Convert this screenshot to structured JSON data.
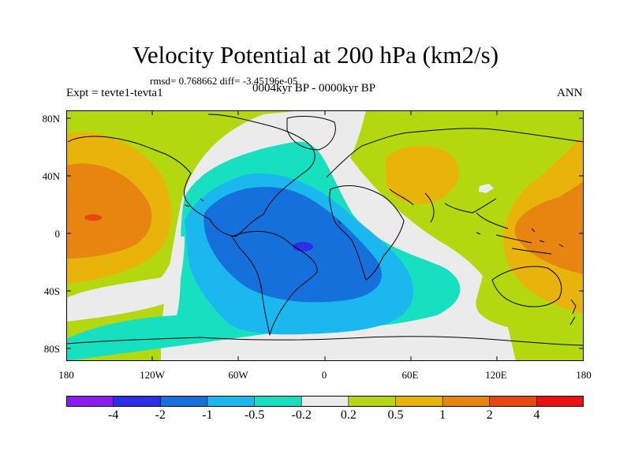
{
  "title": "Velocity Potential at 200 hPa (km2/s)",
  "stats": "rmsd= 0.768662 diff= -3.45196e-05",
  "expt": "Expt = tevte1-tevta1",
  "period": "0004kyr BP - 0000kyr BP",
  "season": "ANN",
  "lat_labels": [
    "80N",
    "40N",
    "0",
    "40S",
    "80S"
  ],
  "lon_labels": [
    "180",
    "120W",
    "60W",
    "0",
    "60E",
    "120E",
    "180"
  ],
  "colorbar": {
    "labels": [
      "-4",
      "-2",
      "-1",
      "-0.5",
      "-0.2",
      "0.2",
      "0.5",
      "1",
      "2",
      "4"
    ],
    "colors": [
      "#8c1bf0",
      "#2c2ee8",
      "#1670dc",
      "#1ab8ee",
      "#17e0c0",
      "#ebebeb",
      "#b4d810",
      "#e8b40c",
      "#e88410",
      "#e84810",
      "#ee1010"
    ]
  },
  "map_colors": {
    "ocean_base": "#b4d810",
    "neutral": "#ebebeb",
    "teal": "#17e0c0",
    "light_blue": "#1ab8ee",
    "blue": "#1670dc",
    "dark_blue": "#2c2ee8",
    "gold": "#e8b40c",
    "orange": "#e88410",
    "red": "#e84810"
  }
}
